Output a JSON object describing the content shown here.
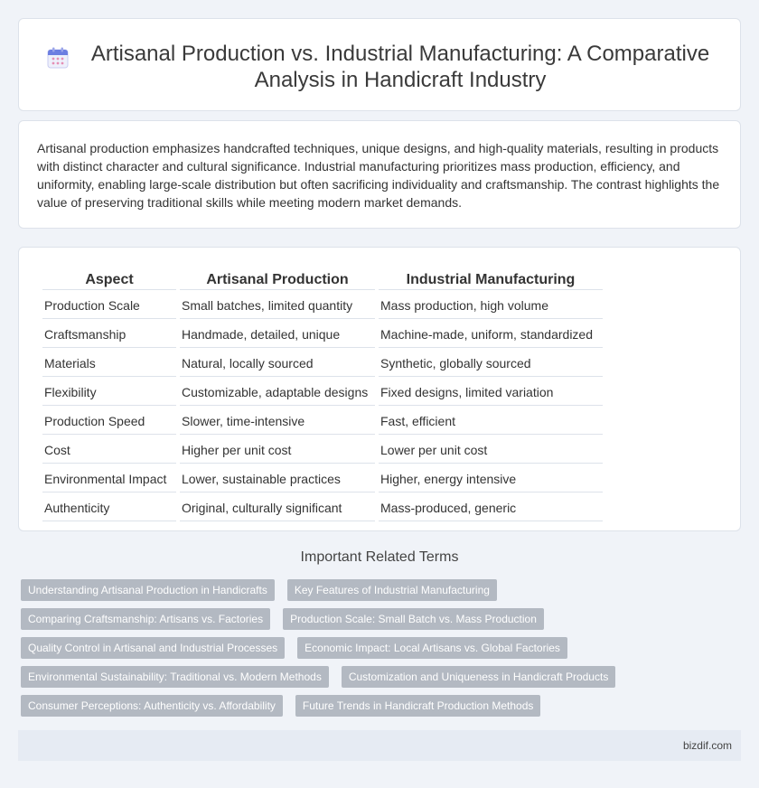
{
  "header": {
    "title": "Artisanal Production vs. Industrial Manufacturing: A Comparative Analysis in Handicraft Industry",
    "icon": "calendar-icon"
  },
  "intro": {
    "text": "Artisanal production emphasizes handcrafted techniques, unique designs, and high-quality materials, resulting in products with distinct character and cultural significance. Industrial manufacturing prioritizes mass production, efficiency, and uniformity, enabling large-scale distribution but often sacrificing individuality and craftsmanship. The contrast highlights the value of preserving traditional skills while meeting modern market demands."
  },
  "table": {
    "headers": [
      "Aspect",
      "Artisanal Production",
      "Industrial Manufacturing"
    ],
    "rows": [
      [
        "Production Scale",
        "Small batches, limited quantity",
        "Mass production, high volume"
      ],
      [
        "Craftsmanship",
        "Handmade, detailed, unique",
        "Machine-made, uniform, standardized"
      ],
      [
        "Materials",
        "Natural, locally sourced",
        "Synthetic, globally sourced"
      ],
      [
        "Flexibility",
        "Customizable, adaptable designs",
        "Fixed designs, limited variation"
      ],
      [
        "Production Speed",
        "Slower, time-intensive",
        "Fast, efficient"
      ],
      [
        "Cost",
        "Higher per unit cost",
        "Lower per unit cost"
      ],
      [
        "Environmental Impact",
        "Lower, sustainable practices",
        "Higher, energy intensive"
      ],
      [
        "Authenticity",
        "Original, culturally significant",
        "Mass-produced, generic"
      ]
    ]
  },
  "related": {
    "title": "Important Related Terms",
    "tags": [
      "Understanding Artisanal Production in Handicrafts",
      "Key Features of Industrial Manufacturing",
      "Comparing Craftsmanship: Artisans vs. Factories",
      "Production Scale: Small Batch vs. Mass Production",
      "Quality Control in Artisanal and Industrial Processes",
      "Economic Impact: Local Artisans vs. Global Factories",
      "Environmental Sustainability: Traditional vs. Modern Methods",
      "Customization and Uniqueness in Handicraft Products",
      "Consumer Perceptions: Authenticity vs. Affordability",
      "Future Trends in Handicraft Production Methods"
    ]
  },
  "footer": {
    "site": "bizdif.com"
  },
  "colors": {
    "tag_bg": "#b3b9c2",
    "page_bg": "#f0f3f8",
    "footer_bg": "#e6ebf3"
  }
}
